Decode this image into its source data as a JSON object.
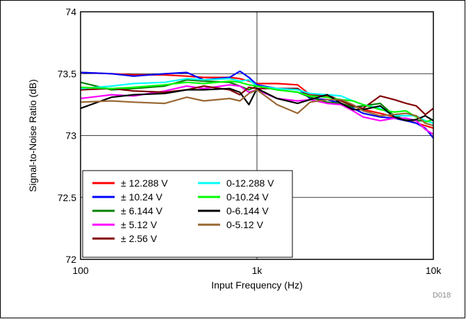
{
  "chart_data": {
    "type": "line",
    "xlabel": "Input Frequency (Hz)",
    "ylabel": "Signal-to-Noise Ratio (dB)",
    "xscale": "log",
    "xlim": [
      100,
      10000
    ],
    "ylim": [
      72,
      74
    ],
    "x_ticks": [
      100,
      1000,
      10000
    ],
    "x_tick_labels": [
      "100",
      "1k",
      "10k"
    ],
    "y_ticks": [
      72,
      72.5,
      73,
      73.5,
      74
    ],
    "y_tick_labels": [
      "72",
      "72.5",
      "73",
      "73.5",
      "74"
    ],
    "grid": true,
    "legend_position": "bottom-left",
    "legend_columns": 2,
    "watermark": "D018",
    "x": [
      100,
      150,
      200,
      300,
      400,
      500,
      700,
      800,
      900,
      1000,
      1300,
      1700,
      2000,
      2500,
      3000,
      3500,
      4000,
      5000,
      6000,
      7000,
      8000,
      9000,
      10000
    ],
    "series": [
      {
        "name": "± 12.288 V",
        "color": "#ff0000",
        "values": [
          73.51,
          73.5,
          73.49,
          73.49,
          73.48,
          73.47,
          73.47,
          73.46,
          73.44,
          73.42,
          73.42,
          73.41,
          73.33,
          73.32,
          73.28,
          73.24,
          73.21,
          73.18,
          73.15,
          73.13,
          73.1,
          73.08,
          73.06
        ]
      },
      {
        "name": "± 10.24 V",
        "color": "#0000ff",
        "values": [
          73.51,
          73.5,
          73.48,
          73.5,
          73.51,
          73.45,
          73.47,
          73.52,
          73.47,
          73.41,
          73.38,
          73.38,
          73.3,
          73.29,
          73.26,
          73.22,
          73.18,
          73.15,
          73.14,
          73.12,
          73.1,
          73.06,
          72.98
        ]
      },
      {
        "name": "± 6.144 V",
        "color": "#008000",
        "values": [
          73.43,
          73.37,
          73.38,
          73.4,
          73.45,
          73.44,
          73.43,
          73.4,
          73.37,
          73.4,
          73.37,
          73.35,
          73.31,
          73.27,
          73.26,
          73.23,
          73.24,
          73.26,
          73.16,
          73.13,
          73.12,
          73.12,
          73.1
        ]
      },
      {
        "name": "± 5.12 V",
        "color": "#ff00ff",
        "values": [
          73.3,
          73.33,
          73.32,
          73.36,
          73.4,
          73.38,
          73.41,
          73.4,
          73.35,
          73.37,
          73.3,
          73.28,
          73.29,
          73.26,
          73.25,
          73.2,
          73.15,
          73.12,
          73.14,
          73.14,
          73.12,
          73.05,
          73.01
        ]
      },
      {
        "name": "± 2.56 V",
        "color": "#800000",
        "values": [
          73.37,
          73.38,
          73.36,
          73.35,
          73.37,
          73.4,
          73.37,
          73.33,
          73.39,
          73.38,
          73.38,
          73.38,
          73.32,
          73.33,
          73.28,
          73.24,
          73.22,
          73.32,
          73.29,
          73.26,
          73.24,
          73.17,
          73.22
        ]
      },
      {
        "name": "0-12.288 V",
        "color": "#00ffff",
        "values": [
          73.38,
          73.4,
          73.42,
          73.43,
          73.46,
          73.45,
          73.46,
          73.44,
          73.45,
          73.4,
          73.38,
          73.37,
          73.34,
          73.33,
          73.32,
          73.28,
          73.25,
          73.22,
          73.16,
          73.16,
          73.16,
          73.12,
          73.1
        ]
      },
      {
        "name": "0-10.24 V",
        "color": "#00ff00",
        "values": [
          73.39,
          73.38,
          73.39,
          73.41,
          73.43,
          73.42,
          73.44,
          73.43,
          73.41,
          73.4,
          73.37,
          73.35,
          73.32,
          73.31,
          73.29,
          73.28,
          73.25,
          73.21,
          73.19,
          73.2,
          73.15,
          73.11,
          73.13
        ]
      },
      {
        "name": "0-6.144 V",
        "color": "#000000",
        "values": [
          73.22,
          73.31,
          73.33,
          73.34,
          73.37,
          73.37,
          73.38,
          73.35,
          73.25,
          73.38,
          73.3,
          73.26,
          73.29,
          73.33,
          73.26,
          73.21,
          73.21,
          73.24,
          73.15,
          73.12,
          73.13,
          73.16,
          73.12
        ]
      },
      {
        "name": "0-5.12 V",
        "color": "#996633",
        "values": [
          73.27,
          73.28,
          73.27,
          73.26,
          73.31,
          73.28,
          73.3,
          73.28,
          73.34,
          73.37,
          73.25,
          73.18,
          73.27,
          73.29,
          73.29,
          73.25,
          73.2,
          73.16,
          73.17,
          73.18,
          73.16,
          73.1,
          73.08
        ]
      }
    ]
  }
}
